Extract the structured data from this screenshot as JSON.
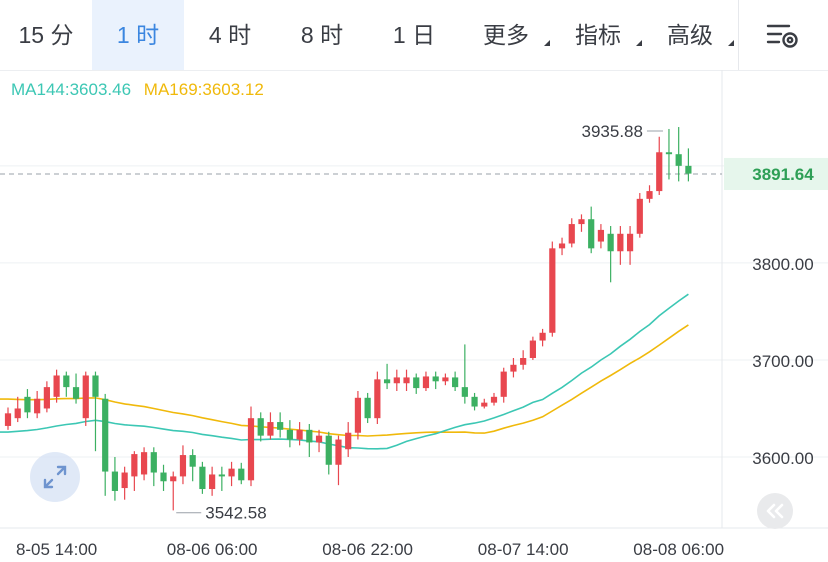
{
  "tabs": [
    {
      "label": "15 分",
      "active": false,
      "dropdown": false
    },
    {
      "label": "1 时",
      "active": true,
      "dropdown": false
    },
    {
      "label": "4 时",
      "active": false,
      "dropdown": false
    },
    {
      "label": "8 时",
      "active": false,
      "dropdown": false
    },
    {
      "label": "1 日",
      "active": false,
      "dropdown": false
    },
    {
      "label": "更多",
      "active": false,
      "dropdown": true
    },
    {
      "label": "指标",
      "active": false,
      "dropdown": true
    },
    {
      "label": "高级",
      "active": false,
      "dropdown": true
    }
  ],
  "icons": {
    "settings": "chart-settings-icon",
    "zoom": "expand-diagonal-icon",
    "collapse": "collapse-left-icon"
  },
  "legend": {
    "ma144": {
      "text": "MA144:3603.46",
      "color": "#3cc7b4"
    },
    "ma169": {
      "text": "MA169:3603.12",
      "color": "#f0b90b"
    }
  },
  "colors": {
    "up": "#e8474f",
    "down": "#3cb062",
    "accent": "#3b86e0",
    "price_tag": "#2e9f56",
    "price_tag_bg": "#e6f6ec"
  },
  "chart_data": {
    "type": "candlestick",
    "interval": "1h",
    "y_ticks": [
      3600,
      3700,
      3800
    ],
    "y_tick_labels": [
      "3600.00",
      "3700.00",
      "3800.00"
    ],
    "ylim": [
      3512,
      3990
    ],
    "x_ticks": [
      {
        "index": 5,
        "label": "8-05 14:00"
      },
      {
        "index": 21,
        "label": "08-06 06:00"
      },
      {
        "index": 37,
        "label": "08-06 22:00"
      },
      {
        "index": 53,
        "label": "08-07 14:00"
      },
      {
        "index": 69,
        "label": "08-08 06:00"
      }
    ],
    "current_price": 3891.64,
    "current_price_label": "3891.64",
    "high_label": {
      "index": 68,
      "value": 3935.88,
      "text": "3935.88"
    },
    "low_label": {
      "index": 17,
      "value": 3542.58,
      "text": "3542.58"
    },
    "candles": [
      [
        3632,
        3645,
        3628,
        3651
      ],
      [
        3640,
        3650,
        3636,
        3662
      ],
      [
        3662,
        3646,
        3640,
        3670
      ],
      [
        3645,
        3660,
        3640,
        3668
      ],
      [
        3650,
        3672,
        3646,
        3678
      ],
      [
        3662,
        3684,
        3656,
        3690
      ],
      [
        3684,
        3672,
        3662,
        3688
      ],
      [
        3672,
        3660,
        3655,
        3686
      ],
      [
        3640,
        3684,
        3632,
        3688
      ],
      [
        3684,
        3662,
        3606,
        3688
      ],
      [
        3660,
        3585,
        3560,
        3665
      ],
      [
        3585,
        3565,
        3555,
        3600
      ],
      [
        3568,
        3584,
        3556,
        3590
      ],
      [
        3580,
        3603,
        3565,
        3606
      ],
      [
        3582,
        3605,
        3576,
        3610
      ],
      [
        3605,
        3584,
        3570,
        3610
      ],
      [
        3584,
        3575,
        3565,
        3592
      ],
      [
        3575,
        3580,
        3545,
        3585
      ],
      [
        3580,
        3602,
        3572,
        3612
      ],
      [
        3602,
        3590,
        3575,
        3608
      ],
      [
        3590,
        3567,
        3562,
        3595
      ],
      [
        3567,
        3582,
        3560,
        3590
      ],
      [
        3582,
        3580,
        3565,
        3590
      ],
      [
        3580,
        3588,
        3570,
        3595
      ],
      [
        3588,
        3576,
        3572,
        3594
      ],
      [
        3576,
        3640,
        3570,
        3652
      ],
      [
        3640,
        3622,
        3616,
        3646
      ],
      [
        3622,
        3636,
        3618,
        3646
      ],
      [
        3636,
        3628,
        3620,
        3646
      ],
      [
        3628,
        3618,
        3610,
        3638
      ],
      [
        3618,
        3628,
        3612,
        3636
      ],
      [
        3628,
        3615,
        3600,
        3634
      ],
      [
        3615,
        3622,
        3605,
        3628
      ],
      [
        3622,
        3592,
        3582,
        3626
      ],
      [
        3592,
        3618,
        3571,
        3622
      ],
      [
        3608,
        3625,
        3600,
        3636
      ],
      [
        3625,
        3661,
        3618,
        3668
      ],
      [
        3661,
        3640,
        3635,
        3666
      ],
      [
        3640,
        3680,
        3634,
        3688
      ],
      [
        3680,
        3676,
        3670,
        3696
      ],
      [
        3676,
        3682,
        3668,
        3690
      ],
      [
        3676,
        3682,
        3668,
        3690
      ],
      [
        3682,
        3671,
        3665,
        3686
      ],
      [
        3671,
        3683,
        3668,
        3688
      ],
      [
        3683,
        3678,
        3670,
        3688
      ],
      [
        3678,
        3682,
        3674,
        3686
      ],
      [
        3682,
        3672,
        3668,
        3688
      ],
      [
        3672,
        3662,
        3655,
        3716
      ],
      [
        3662,
        3652,
        3648,
        3666
      ],
      [
        3652,
        3656,
        3650,
        3660
      ],
      [
        3656,
        3662,
        3653,
        3666
      ],
      [
        3662,
        3688,
        3656,
        3692
      ],
      [
        3688,
        3695,
        3682,
        3702
      ],
      [
        3695,
        3702,
        3690,
        3710
      ],
      [
        3702,
        3720,
        3700,
        3724
      ],
      [
        3720,
        3728,
        3714,
        3732
      ],
      [
        3728,
        3815,
        3724,
        3822
      ],
      [
        3815,
        3820,
        3808,
        3826
      ],
      [
        3820,
        3840,
        3816,
        3846
      ],
      [
        3840,
        3845,
        3832,
        3850
      ],
      [
        3845,
        3815,
        3810,
        3858
      ],
      [
        3822,
        3834,
        3815,
        3840
      ],
      [
        3830,
        3812,
        3780,
        3838
      ],
      [
        3812,
        3830,
        3798,
        3838
      ],
      [
        3812,
        3830,
        3798,
        3838
      ],
      [
        3830,
        3866,
        3826,
        3872
      ],
      [
        3866,
        3874,
        3862,
        3880
      ],
      [
        3874,
        3914,
        3870,
        3930
      ],
      [
        3914,
        3912,
        3886,
        3938
      ],
      [
        3912,
        3900,
        3884,
        3940
      ],
      [
        3900,
        3892,
        3884,
        3918
      ]
    ]
  }
}
